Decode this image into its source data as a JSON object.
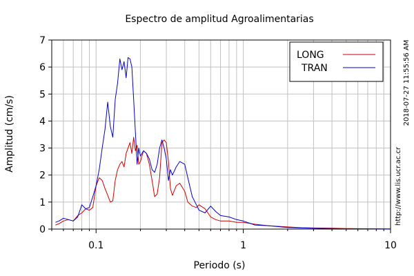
{
  "chart_data": {
    "type": "line",
    "title": "Espectro de amplitud Agroalimentarias",
    "xlabel": "Periodo (s)",
    "ylabel": "Amplitud (cm/s)",
    "x_scale": "log",
    "xlim": [
      0.05,
      10
    ],
    "ylim": [
      0,
      7
    ],
    "x_ticks": [
      {
        "value": 0.1,
        "label": "0.1"
      },
      {
        "value": 1,
        "label": "1"
      },
      {
        "value": 10,
        "label": "10"
      }
    ],
    "y_ticks": [
      {
        "value": 0,
        "label": "0"
      },
      {
        "value": 1,
        "label": "1"
      },
      {
        "value": 2,
        "label": "2"
      },
      {
        "value": 3,
        "label": "3"
      },
      {
        "value": 4,
        "label": "4"
      },
      {
        "value": 5,
        "label": "5"
      },
      {
        "value": 6,
        "label": "6"
      },
      {
        "value": 7,
        "label": "7"
      }
    ],
    "grid": true,
    "legend_position": "top-right",
    "series": [
      {
        "name": "LONG",
        "color": "#cc0000",
        "x": [
          0.053,
          0.056,
          0.06,
          0.065,
          0.07,
          0.075,
          0.08,
          0.085,
          0.09,
          0.095,
          0.1,
          0.105,
          0.11,
          0.115,
          0.12,
          0.125,
          0.13,
          0.135,
          0.14,
          0.145,
          0.15,
          0.155,
          0.16,
          0.165,
          0.17,
          0.175,
          0.18,
          0.185,
          0.19,
          0.195,
          0.2,
          0.21,
          0.22,
          0.23,
          0.24,
          0.25,
          0.26,
          0.27,
          0.28,
          0.29,
          0.3,
          0.31,
          0.32,
          0.33,
          0.35,
          0.37,
          0.4,
          0.42,
          0.45,
          0.48,
          0.5,
          0.55,
          0.6,
          0.65,
          0.7,
          0.8,
          0.9,
          1.0,
          1.2,
          1.5,
          2,
          2.5,
          3,
          4,
          5,
          7,
          10
        ],
        "y": [
          0.15,
          0.2,
          0.3,
          0.35,
          0.3,
          0.5,
          0.6,
          0.75,
          0.7,
          0.8,
          1.6,
          1.9,
          1.8,
          1.5,
          1.25,
          1.0,
          1.05,
          1.8,
          2.2,
          2.4,
          2.5,
          2.3,
          2.8,
          3.0,
          3.2,
          2.8,
          3.4,
          2.9,
          3.1,
          2.4,
          2.5,
          2.9,
          2.8,
          2.4,
          1.8,
          1.2,
          1.3,
          1.9,
          3.2,
          3.3,
          3.2,
          2.5,
          1.5,
          1.25,
          1.6,
          1.7,
          1.4,
          1.0,
          0.85,
          0.8,
          0.9,
          0.75,
          0.45,
          0.35,
          0.3,
          0.3,
          0.25,
          0.25,
          0.18,
          0.12,
          0.08,
          0.05,
          0.04,
          0.03,
          0.02,
          0.01,
          0.01
        ]
      },
      {
        "name": "TRAN",
        "color": "#0000cc",
        "x": [
          0.053,
          0.056,
          0.06,
          0.065,
          0.07,
          0.075,
          0.08,
          0.085,
          0.09,
          0.095,
          0.1,
          0.105,
          0.11,
          0.115,
          0.12,
          0.125,
          0.13,
          0.135,
          0.14,
          0.145,
          0.15,
          0.155,
          0.16,
          0.165,
          0.17,
          0.175,
          0.18,
          0.185,
          0.19,
          0.195,
          0.2,
          0.21,
          0.22,
          0.23,
          0.24,
          0.25,
          0.26,
          0.27,
          0.28,
          0.29,
          0.3,
          0.31,
          0.32,
          0.33,
          0.35,
          0.37,
          0.4,
          0.42,
          0.45,
          0.48,
          0.5,
          0.55,
          0.6,
          0.65,
          0.7,
          0.8,
          0.9,
          1.0,
          1.2,
          1.5,
          2,
          2.5,
          3,
          4,
          5,
          7,
          10
        ],
        "y": [
          0.25,
          0.3,
          0.4,
          0.35,
          0.3,
          0.45,
          0.9,
          0.75,
          0.8,
          1.2,
          1.6,
          2.2,
          3.0,
          3.7,
          4.7,
          3.8,
          3.4,
          4.8,
          5.4,
          6.3,
          5.9,
          6.2,
          5.6,
          6.35,
          6.3,
          6.0,
          4.8,
          3.6,
          2.4,
          3.0,
          2.7,
          2.9,
          2.8,
          2.6,
          2.2,
          2.1,
          2.4,
          3.0,
          3.3,
          3.0,
          2.6,
          1.8,
          2.2,
          2.0,
          2.3,
          2.5,
          2.4,
          1.9,
          1.2,
          0.9,
          0.7,
          0.6,
          0.85,
          0.65,
          0.5,
          0.45,
          0.35,
          0.3,
          0.15,
          0.12,
          0.06,
          0.04,
          0.03,
          0.02,
          0.01,
          0.01,
          0.0
        ]
      }
    ]
  },
  "side_labels": {
    "timestamp": "2018-07-27 11:55:56 AM",
    "source_url": "http://www.lis.ucr.ac.cr"
  }
}
